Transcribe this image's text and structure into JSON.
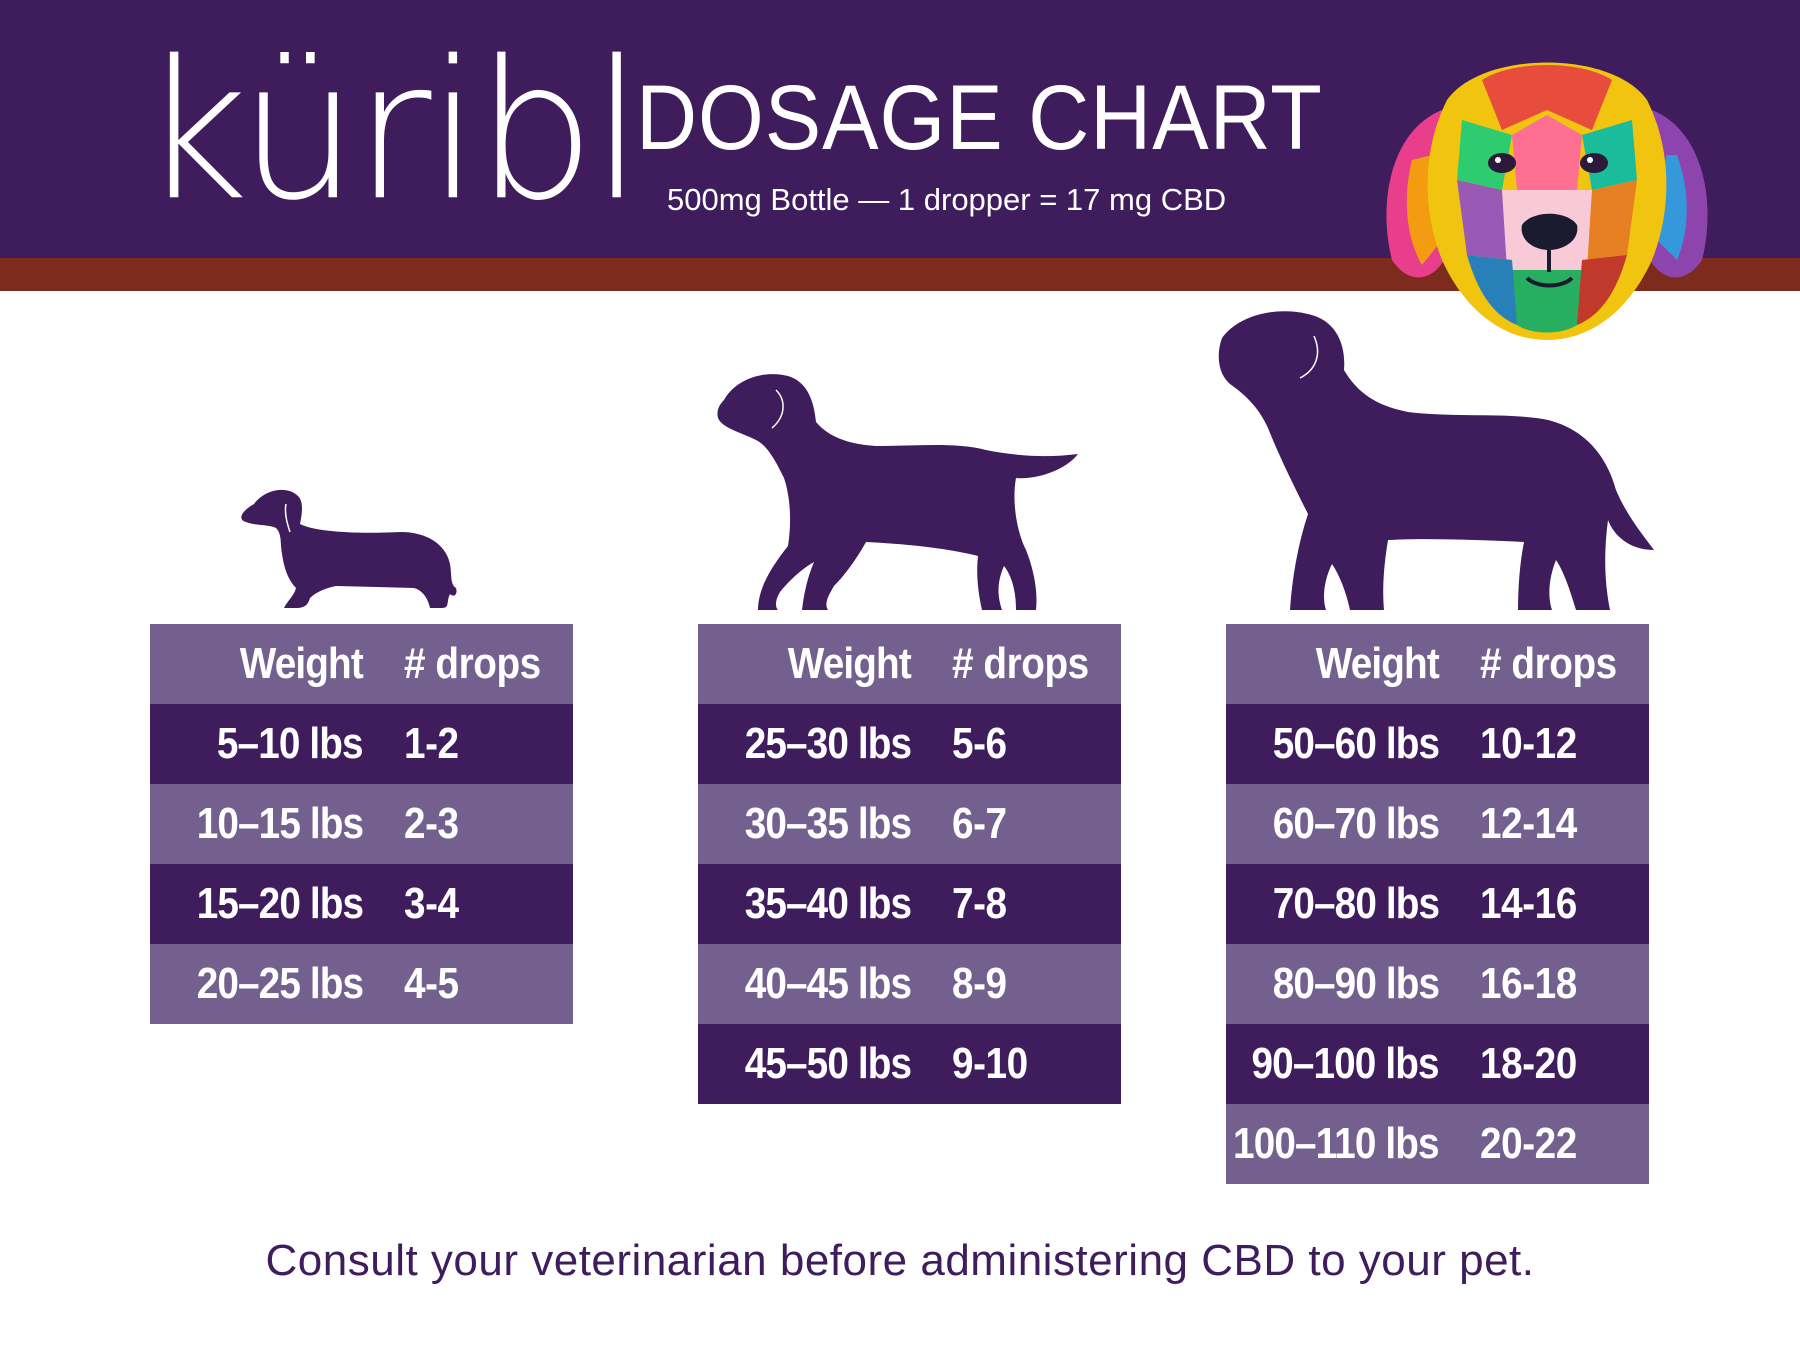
{
  "header": {
    "brand": "küribl",
    "title": "DOSAGE CHART",
    "subtitle": "500mg Bottle — 1 dropper = 17 mg CBD",
    "colors": {
      "purple": "#3f1d5c",
      "rust": "#7c2b1c",
      "light_purple": "#74608f"
    },
    "illustration": "colorful-dog-portrait-icon"
  },
  "tables": [
    {
      "size": "small",
      "icon": "dachshund-silhouette-icon",
      "header": {
        "weight": "Weight",
        "drops": "# drops"
      },
      "rows": [
        {
          "weight": "5–10 lbs",
          "drops": "1-2"
        },
        {
          "weight": "10–15 lbs",
          "drops": "2-3"
        },
        {
          "weight": "15–20 lbs",
          "drops": "3-4"
        },
        {
          "weight": "20–25 lbs",
          "drops": "4-5"
        }
      ]
    },
    {
      "size": "medium",
      "icon": "retriever-silhouette-icon",
      "header": {
        "weight": "Weight",
        "drops": "# drops"
      },
      "rows": [
        {
          "weight": "25–30 lbs",
          "drops": "5-6"
        },
        {
          "weight": "30–35 lbs",
          "drops": "6-7"
        },
        {
          "weight": "35–40 lbs",
          "drops": "7-8"
        },
        {
          "weight": "40–45 lbs",
          "drops": "8-9"
        },
        {
          "weight": "45–50 lbs",
          "drops": "9-10"
        }
      ]
    },
    {
      "size": "large",
      "icon": "large-dog-silhouette-icon",
      "header": {
        "weight": "Weight",
        "drops": "# drops"
      },
      "rows": [
        {
          "weight": "50–60 lbs",
          "drops": "10-12"
        },
        {
          "weight": "60–70 lbs",
          "drops": "12-14"
        },
        {
          "weight": "70–80 lbs",
          "drops": "14-16"
        },
        {
          "weight": "80–90 lbs",
          "drops": "16-18"
        },
        {
          "weight": "90–100 lbs",
          "drops": "18-20"
        },
        {
          "weight": "100–110 lbs",
          "drops": "20-22"
        }
      ]
    }
  ],
  "footer": {
    "note": "Consult your veterinarian before administering CBD to your pet."
  }
}
